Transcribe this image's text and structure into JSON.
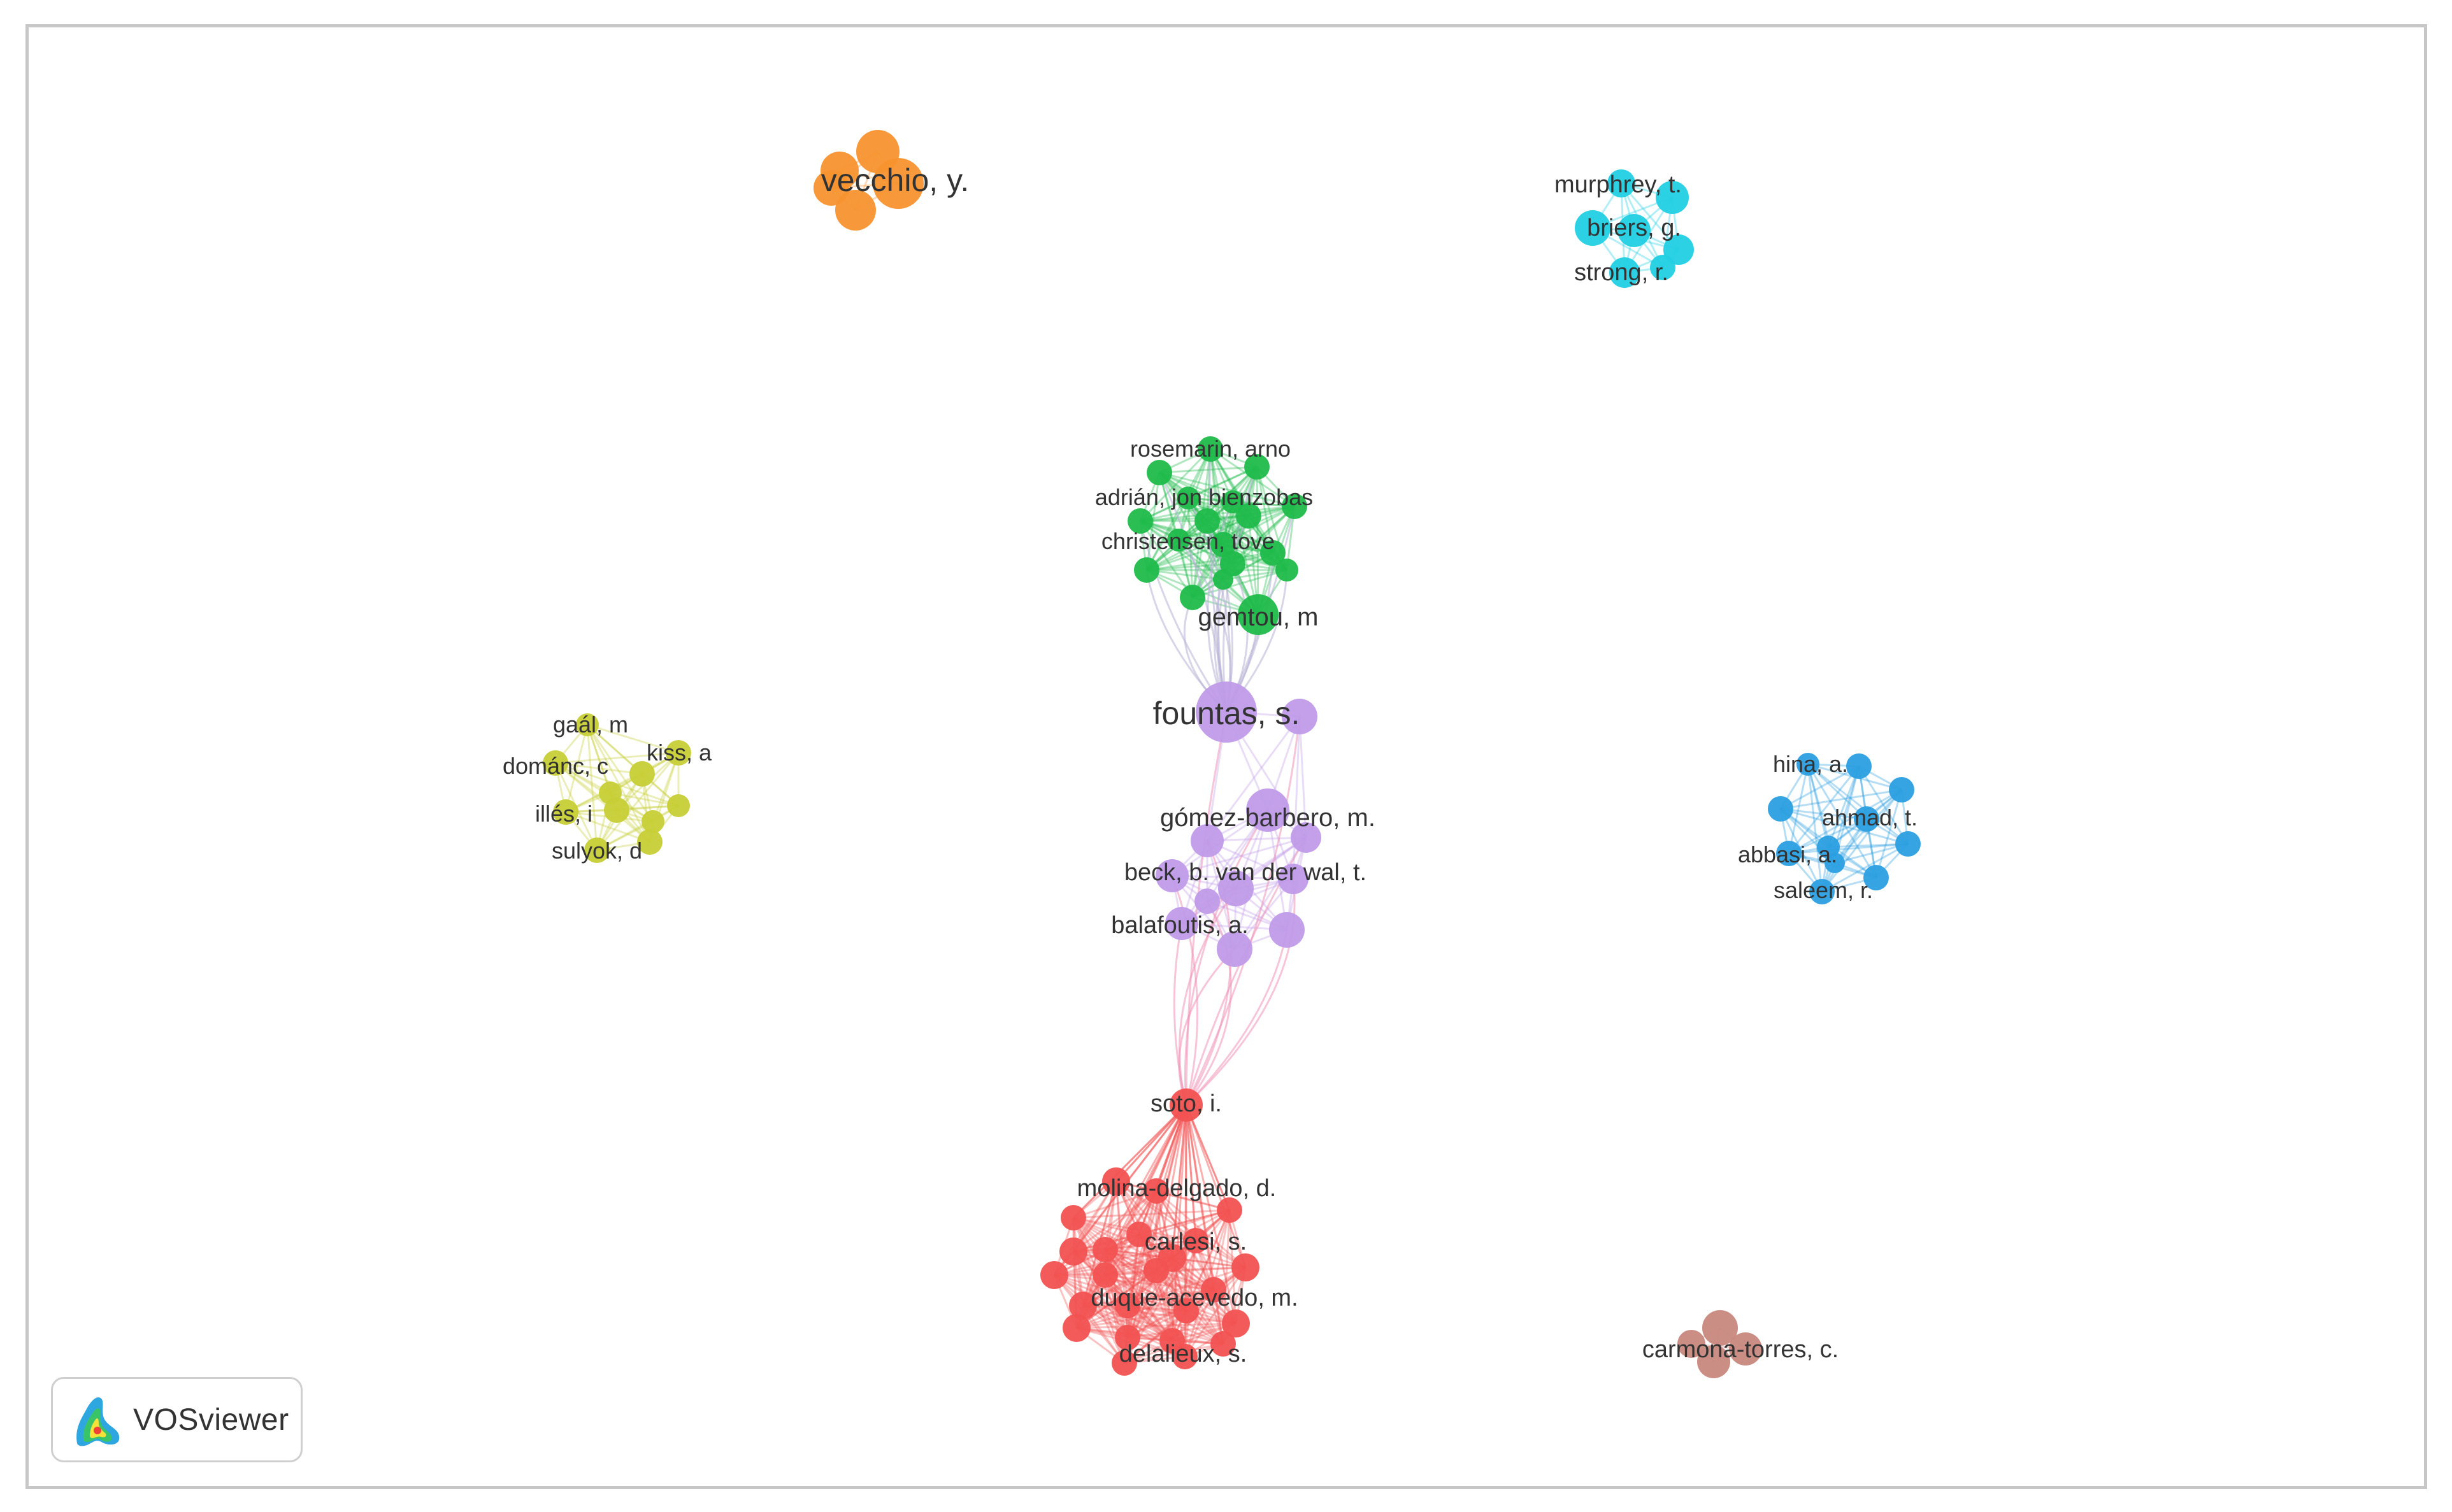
{
  "app": {
    "name": "VOSviewer"
  },
  "palette": {
    "orange": "#f7932f",
    "cyan": "#22cfe3",
    "green": "#1fbb4a",
    "purple": "#c09be8",
    "yellow": "#c7cf36",
    "blue": "#2b9fe0",
    "red": "#f25252",
    "brown": "#c8887e"
  },
  "clusters": [
    {
      "id": "orange",
      "color": "orange",
      "labels": [
        "vecchio, y."
      ]
    },
    {
      "id": "cyan",
      "color": "cyan",
      "labels": [
        "murphrey, t.",
        "briers, g.",
        "strong, r."
      ]
    },
    {
      "id": "green",
      "color": "green",
      "labels": [
        "rosemarin, arno",
        "adrián, jon bienzobas",
        "christensen, tove",
        "gemtou, m"
      ]
    },
    {
      "id": "purple",
      "color": "purple",
      "labels": [
        "fountas, s.",
        "gómez-barbero, m.",
        "beck, b. van der wal, t.",
        "balafoutis, a."
      ]
    },
    {
      "id": "yellow",
      "color": "yellow",
      "labels": [
        "gaál, m",
        "kiss, a",
        "dománc, c",
        "illés, i",
        "sulyok, d"
      ]
    },
    {
      "id": "blue",
      "color": "blue",
      "labels": [
        "hina, a.",
        "ahmad, t.",
        "abbasi, a.",
        "saleem, r."
      ]
    },
    {
      "id": "red",
      "color": "red",
      "labels": [
        "soto, i.",
        "molina-delgado, d.",
        "carlesi, s.",
        "duque-acevedo, m.",
        "delalieux, s."
      ]
    },
    {
      "id": "brown",
      "color": "brown",
      "labels": [
        "carmona-torres, c."
      ]
    }
  ]
}
